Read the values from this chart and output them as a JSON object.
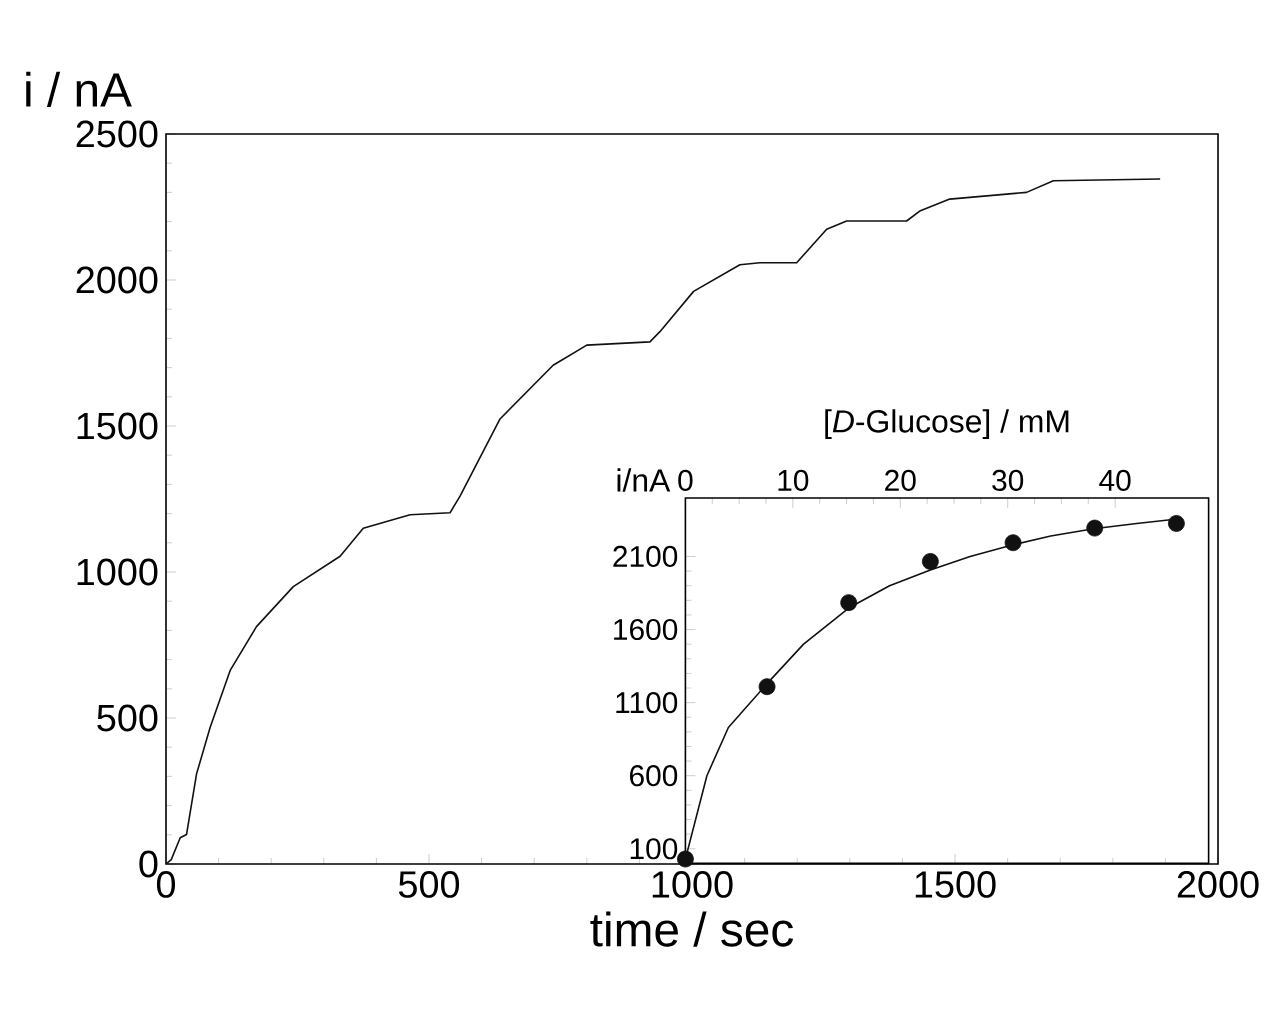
{
  "chart_data": [
    {
      "type": "line",
      "xlabel": "time / sec",
      "ylabel": "i / nA",
      "xlim": [
        0,
        2000
      ],
      "xticks": [
        0,
        500,
        1000,
        1500,
        2000
      ],
      "ylim": [
        0,
        2500
      ],
      "yticks": [
        0,
        500,
        1000,
        1500,
        2000,
        2500
      ],
      "series": [
        {
          "color": "#111111",
          "x": [
            0,
            10,
            27,
            39,
            58,
            84,
            122,
            172,
            242,
            331,
            375,
            464,
            540,
            559,
            635,
            736,
            800,
            920,
            939,
            1003,
            1091,
            1129,
            1199,
            1256,
            1294,
            1408,
            1433,
            1490,
            1636,
            1687,
            1890
          ],
          "values": [
            0,
            15,
            90,
            101,
            308,
            468,
            663,
            813,
            950,
            1054,
            1150,
            1196,
            1203,
            1260,
            1524,
            1708,
            1777,
            1788,
            1823,
            1961,
            2052,
            2059,
            2059,
            2174,
            2202,
            2202,
            2236,
            2277,
            2300,
            2340,
            2346
          ]
        }
      ]
    },
    {
      "type": "scatter",
      "marker": "circle",
      "xlabel": "[*D*-Glucose] / mM",
      "ylabel": "i/nA",
      "xlim": [
        0,
        48.7
      ],
      "xticks": [
        0,
        10,
        20,
        30,
        40
      ],
      "ylim": [
        0,
        2500
      ],
      "yticks": [
        100,
        600,
        1100,
        1600,
        2100
      ],
      "series": [
        {
          "color": "#111111",
          "x": [
            0,
            7.6,
            15.2,
            22.8,
            30.5,
            38.1,
            45.7
          ],
          "values": [
            30,
            1209,
            1784,
            2066,
            2194,
            2294,
            2326
          ]
        },
        {
          "type": "line",
          "marker": "none",
          "color": "#111111",
          "x": [
            0,
            2,
            4,
            7.6,
            11,
            15.2,
            19,
            22.8,
            26.5,
            30.5,
            34,
            38,
            42,
            46
          ],
          "values": [
            30,
            600,
            930,
            1230,
            1500,
            1747,
            1900,
            2007,
            2100,
            2180,
            2240,
            2290,
            2325,
            2358
          ]
        }
      ]
    }
  ]
}
